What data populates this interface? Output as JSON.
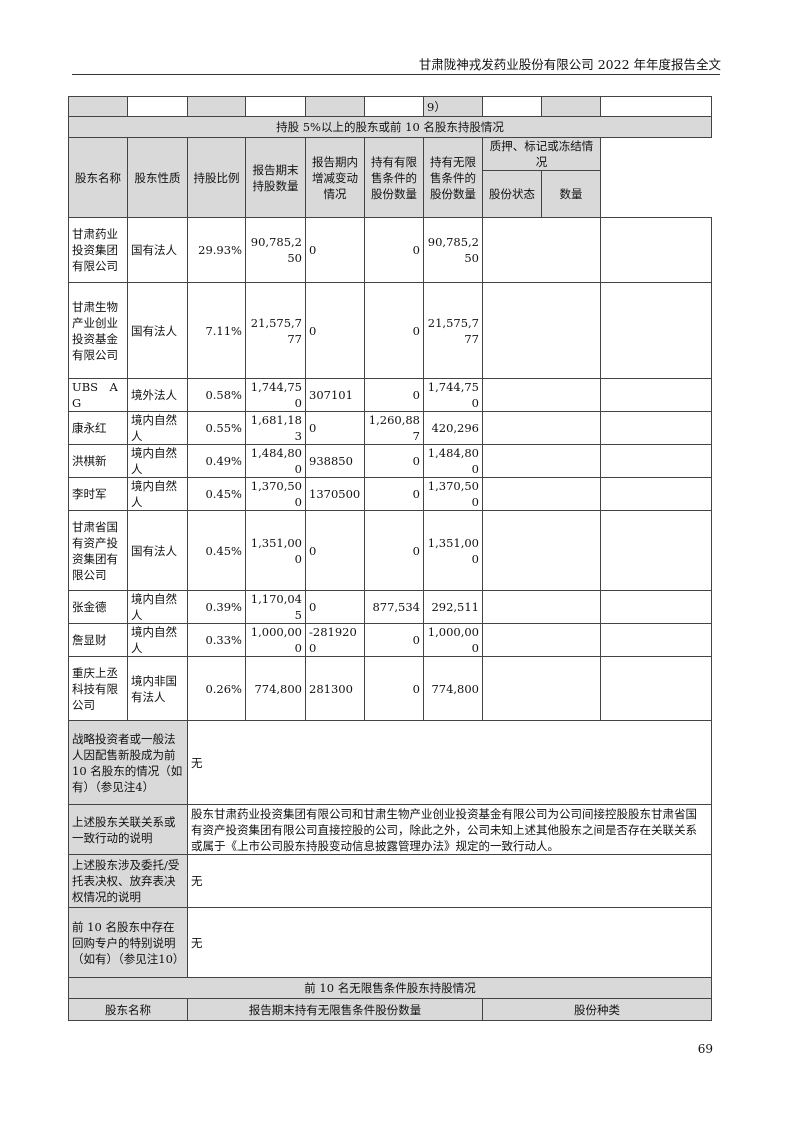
{
  "header": {
    "title": "甘肃陇神戎发药业股份有限公司 2022 年年度报告全文"
  },
  "page_number": "69",
  "top_row": {
    "cell": "9）"
  },
  "section1": {
    "title": "持股 5%以上的股东或前 10 名股东持股情况",
    "columns": [
      "股东名称",
      "股东性质",
      "持股比例",
      "报告期末持股数量",
      "报告期内增减变动情况",
      "持有有限售条件的股份数量",
      "持有无限售条件的股份数量",
      "质押、标记或冻结情况",
      "股份状态",
      "数量"
    ],
    "rows": [
      {
        "name": "甘肃药业投资集团有限公司",
        "type": "国有法人",
        "ratio": "29.93%",
        "end": "90,785,250",
        "change": "0",
        "restricted": "0",
        "unrestricted": "90,785,250",
        "status": "",
        "qty": ""
      },
      {
        "name": "甘肃生物产业创业投资基金有限公司",
        "type": "国有法人",
        "ratio": "7.11%",
        "end": "21,575,777",
        "change": "0",
        "restricted": "0",
        "unrestricted": "21,575,777",
        "status": "",
        "qty": ""
      },
      {
        "name": "UBS　AG",
        "type": "境外法人",
        "ratio": "0.58%",
        "end": "1,744,750",
        "change": "307101",
        "restricted": "0",
        "unrestricted": "1,744,750",
        "status": "",
        "qty": ""
      },
      {
        "name": "康永红",
        "type": "境内自然人",
        "ratio": "0.55%",
        "end": "1,681,183",
        "change": "0",
        "restricted": "1,260,887",
        "unrestricted": "420,296",
        "status": "",
        "qty": ""
      },
      {
        "name": "洪棋新",
        "type": "境内自然人",
        "ratio": "0.49%",
        "end": "1,484,800",
        "change": "938850",
        "restricted": "0",
        "unrestricted": "1,484,800",
        "status": "",
        "qty": ""
      },
      {
        "name": "李时军",
        "type": "境内自然人",
        "ratio": "0.45%",
        "end": "1,370,500",
        "change": "1370500",
        "restricted": "0",
        "unrestricted": "1,370,500",
        "status": "",
        "qty": ""
      },
      {
        "name": "甘肃省国有资产投资集团有限公司",
        "type": "国有法人",
        "ratio": "0.45%",
        "end": "1,351,000",
        "change": "0",
        "restricted": "0",
        "unrestricted": "1,351,000",
        "status": "",
        "qty": ""
      },
      {
        "name": "张金德",
        "type": "境内自然人",
        "ratio": "0.39%",
        "end": "1,170,045",
        "change": "0",
        "restricted": "877,534",
        "unrestricted": "292,511",
        "status": "",
        "qty": ""
      },
      {
        "name": "詹显财",
        "type": "境内自然人",
        "ratio": "0.33%",
        "end": "1,000,000",
        "change": "-2819200",
        "restricted": "0",
        "unrestricted": "1,000,000",
        "status": "",
        "qty": ""
      },
      {
        "name": "重庆上丞科技有限公司",
        "type": "境内非国有法人",
        "ratio": "0.26%",
        "end": "774,800",
        "change": "281300",
        "restricted": "0",
        "unrestricted": "774,800",
        "status": "",
        "qty": ""
      }
    ]
  },
  "notes": [
    {
      "label": "战略投资者或一般法人因配售新股成为前 10 名股东的情况（如有）（参见注4）",
      "value": "无"
    },
    {
      "label": "上述股东关联关系或一致行动的说明",
      "value": "股东甘肃药业投资集团有限公司和甘肃生物产业创业投资基金有限公司为公司间接控股股东甘肃省国有资产投资集团有限公司直接控股的公司，除此之外，公司未知上述其他股东之间是否存在关联关系或属于《上市公司股东持股变动信息披露管理办法》规定的一致行动人。"
    },
    {
      "label": "上述股东涉及委托/受托表决权、放弃表决权情况的说明",
      "value": "无"
    },
    {
      "label": "前 10 名股东中存在回购专户的特别说明（如有）（参见注10）",
      "value": "无"
    }
  ],
  "section2": {
    "title": "前 10 名无限售条件股东持股情况",
    "columns": [
      "股东名称",
      "报告期末持有无限售条件股份数量",
      "股份种类"
    ]
  }
}
